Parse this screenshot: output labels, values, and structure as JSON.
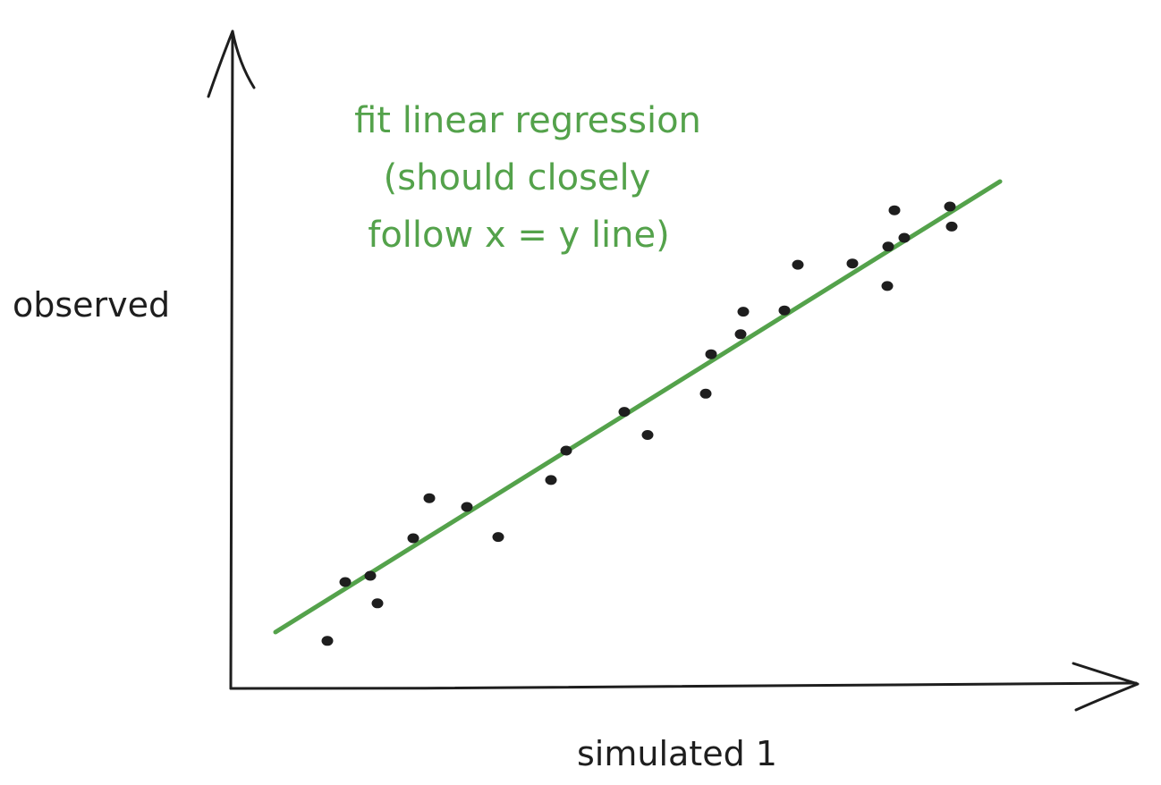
{
  "chart_data": {
    "type": "scatter",
    "xlabel": "simulated 1",
    "ylabel": "observed",
    "annotation": [
      "fit linear regression",
      "(should closely",
      "follow x = y line)"
    ],
    "xlim": [
      0,
      100
    ],
    "ylim": [
      0,
      100
    ],
    "fit_line": {
      "x": [
        5,
        86
      ],
      "y": [
        9,
        81
      ]
    },
    "points": [
      {
        "x": 10.8,
        "y": 7.6
      },
      {
        "x": 12.8,
        "y": 17.0
      },
      {
        "x": 15.6,
        "y": 18.0
      },
      {
        "x": 16.4,
        "y": 13.6
      },
      {
        "x": 20.4,
        "y": 24.0
      },
      {
        "x": 22.2,
        "y": 30.4
      },
      {
        "x": 26.4,
        "y": 29.0
      },
      {
        "x": 29.9,
        "y": 24.2
      },
      {
        "x": 35.8,
        "y": 33.3
      },
      {
        "x": 37.5,
        "y": 38.0
      },
      {
        "x": 44.0,
        "y": 44.2
      },
      {
        "x": 46.6,
        "y": 40.5
      },
      {
        "x": 53.1,
        "y": 47.1
      },
      {
        "x": 53.7,
        "y": 53.4
      },
      {
        "x": 57.0,
        "y": 56.6
      },
      {
        "x": 57.3,
        "y": 60.2
      },
      {
        "x": 61.9,
        "y": 60.4
      },
      {
        "x": 63.4,
        "y": 67.7
      },
      {
        "x": 69.5,
        "y": 67.9
      },
      {
        "x": 73.4,
        "y": 64.3
      },
      {
        "x": 73.5,
        "y": 70.6
      },
      {
        "x": 75.3,
        "y": 72.0
      },
      {
        "x": 74.2,
        "y": 76.4
      },
      {
        "x": 80.4,
        "y": 77.0
      },
      {
        "x": 80.6,
        "y": 73.8
      }
    ]
  },
  "colors": {
    "axis": "#1e1e1e",
    "fit_line": "#54a24b",
    "points": "#1e1e1e",
    "annotation": "#54a24b"
  }
}
